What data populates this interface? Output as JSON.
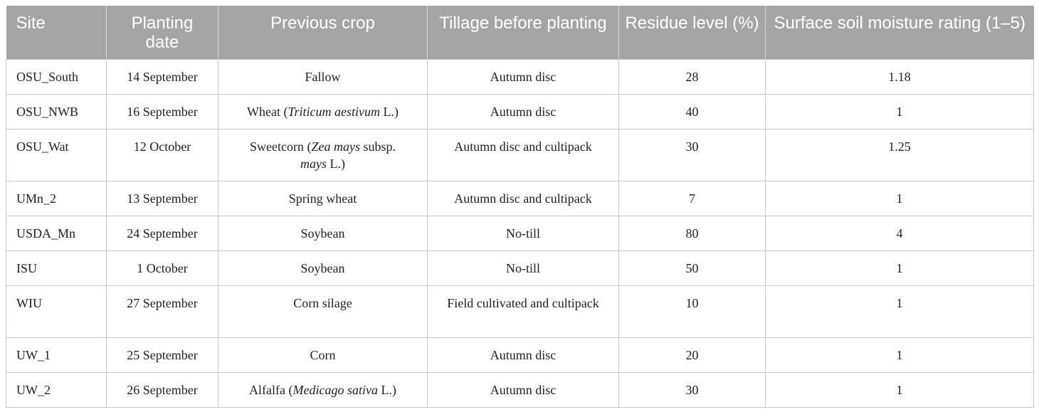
{
  "table": {
    "headers": [
      "Site",
      "Planting date",
      "Previous crop",
      "Tillage before planting",
      "Residue level (%)",
      "Surface soil moisture rating (1–5)"
    ],
    "rows": [
      {
        "site": "OSU_South",
        "date": "14 September",
        "crop": [
          "Fallow"
        ],
        "tillage": "Autumn disc",
        "residue": "28",
        "moisture": "1.18"
      },
      {
        "site": "OSU_NWB",
        "date": "16 September",
        "crop": [
          "Wheat (",
          "Triticum aestivum",
          " L.)"
        ],
        "tillage": "Autumn disc",
        "residue": "40",
        "moisture": "1"
      },
      {
        "site": "OSU_Wat",
        "date": "12 October",
        "crop": [
          "Sweetcorn (",
          "Zea mays",
          " subsp. ",
          "mays",
          " L.)"
        ],
        "tillage": "Autumn disc and cultipack",
        "residue": "30",
        "moisture": "1.25"
      },
      {
        "site": "UMn_2",
        "date": "13 September",
        "crop": [
          "Spring wheat"
        ],
        "tillage": "Autumn disc and cultipack",
        "residue": "7",
        "moisture": "1"
      },
      {
        "site": "USDA_Mn",
        "date": "24 September",
        "crop": [
          "Soybean"
        ],
        "tillage": "No-till",
        "residue": "80",
        "moisture": "4"
      },
      {
        "site": "ISU",
        "date": "1 October",
        "crop": [
          "Soybean"
        ],
        "tillage": "No-till",
        "residue": "50",
        "moisture": "1"
      },
      {
        "site": "WIU",
        "date": "27 September",
        "crop": [
          "Corn silage"
        ],
        "tillage": "Field cultivated and cultipack",
        "residue": "10",
        "moisture": "1"
      },
      {
        "site": "UW_1",
        "date": "25 September",
        "crop": [
          "Corn"
        ],
        "tillage": "Autumn disc",
        "residue": "20",
        "moisture": "1"
      },
      {
        "site": "UW_2",
        "date": "26 September",
        "crop": [
          "Alfalfa (",
          "Medicago sativa",
          " L.)"
        ],
        "tillage": "Autumn disc",
        "residue": "30",
        "moisture": "1"
      }
    ]
  }
}
